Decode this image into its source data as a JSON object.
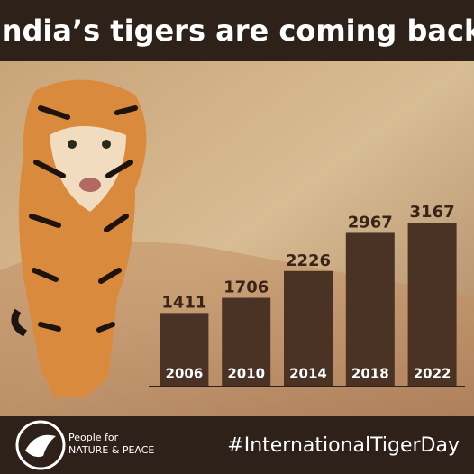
{
  "chart_data": {
    "type": "bar",
    "title": "India’s tigers are coming back",
    "categories": [
      "2006",
      "2010",
      "2014",
      "2018",
      "2022"
    ],
    "values": [
      1411,
      1706,
      2226,
      2967,
      3167
    ],
    "color": "#4a3225",
    "label_color": "#3a2418",
    "ylim": [
      0,
      3500
    ]
  },
  "footer": {
    "logo_line1": "People for",
    "logo_line2": "NATURE & PEACE",
    "hashtag": "#InternationalTigerDay"
  }
}
